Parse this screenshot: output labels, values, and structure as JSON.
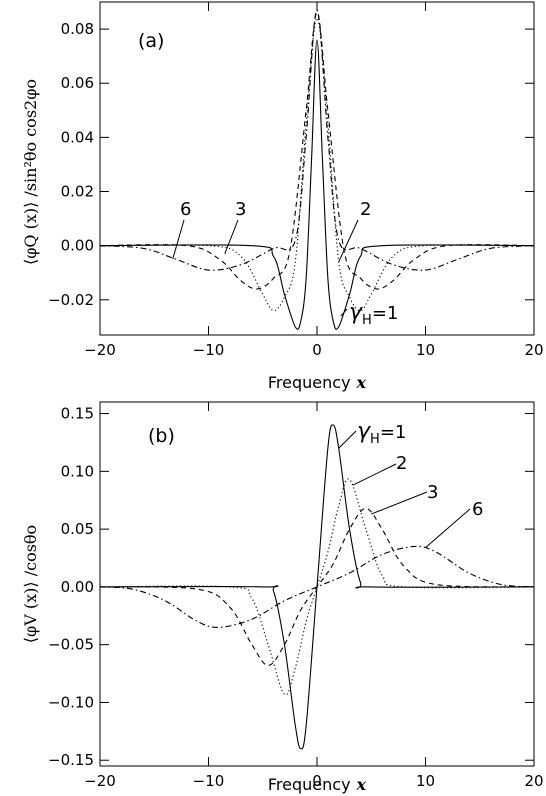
{
  "chart_data": [
    {
      "type": "line",
      "panel_label": "(a)",
      "xlabel_text": "Frequency",
      "xlabel_var": "x",
      "ylabel_text": "⟨φQ (x)⟩ /sin²θo cos2φo",
      "xlim": [
        -20,
        20
      ],
      "ylim": [
        -0.033,
        0.09
      ],
      "x_ticks": [
        -20,
        -10,
        0,
        10,
        20
      ],
      "x_tick_labels": [
        "−20",
        "−10",
        "0",
        "10",
        "20"
      ],
      "y_ticks": [
        -0.02,
        0.0,
        0.02,
        0.04,
        0.06,
        0.08
      ],
      "y_tick_labels": [
        "−0.02",
        "0.00",
        "0.02",
        "0.04",
        "0.06",
        "0.08"
      ],
      "grid": false,
      "series": [
        {
          "label": "1",
          "style": "solid",
          "x": [
            -20,
            -6,
            -4,
            -3,
            -2,
            -1.5,
            -1,
            -0.5,
            0,
            0.5,
            1,
            1.5,
            2,
            3,
            4,
            6,
            20
          ],
          "y": [
            0,
            0,
            -0.004,
            -0.018,
            -0.03,
            -0.028,
            -0.012,
            0.032,
            0.076,
            0.032,
            -0.012,
            -0.028,
            -0.03,
            -0.018,
            -0.004,
            0,
            0
          ]
        },
        {
          "label": "2",
          "style": "dotted",
          "x": [
            -20,
            -10,
            -7,
            -5,
            -4,
            -3,
            -2,
            -1,
            0,
            1,
            2,
            3,
            4,
            5,
            7,
            10,
            20
          ],
          "y": [
            0,
            0,
            -0.004,
            -0.018,
            -0.024,
            -0.019,
            -0.006,
            0.045,
            0.084,
            0.045,
            -0.006,
            -0.019,
            -0.024,
            -0.018,
            -0.004,
            0,
            0
          ]
        },
        {
          "label": "3",
          "style": "dashed",
          "x": [
            -20,
            -12,
            -9,
            -7,
            -5.5,
            -4,
            -2.5,
            -1,
            0,
            1,
            2.5,
            4,
            5.5,
            7,
            9,
            12,
            20
          ],
          "y": [
            0,
            0,
            -0.005,
            -0.013,
            -0.016,
            -0.012,
            -0.002,
            0.05,
            0.086,
            0.05,
            -0.002,
            -0.012,
            -0.016,
            -0.013,
            -0.005,
            0,
            0
          ]
        },
        {
          "label": "6",
          "style": "dashdot",
          "x": [
            -20,
            -16,
            -13,
            -10,
            -7,
            -4,
            -2,
            -1,
            0,
            1,
            2,
            4,
            7,
            10,
            13,
            16,
            20
          ],
          "y": [
            0,
            -0.001,
            -0.005,
            -0.009,
            -0.007,
            -0.001,
            0.002,
            0.04,
            0.087,
            0.04,
            0.002,
            -0.001,
            -0.007,
            -0.009,
            -0.005,
            -0.001,
            0
          ]
        }
      ],
      "annotations": [
        "6",
        "3",
        "2",
        "1"
      ],
      "gamma_symbol": "γ",
      "gamma_sub": "H",
      "gamma_eq": "=1"
    },
    {
      "type": "line",
      "panel_label": "(b)",
      "xlabel_text": "Frequency",
      "xlabel_var": "x",
      "ylabel_text": "⟨φV (x)⟩ /cosθo",
      "xlim": [
        -20,
        20
      ],
      "ylim": [
        -0.155,
        0.16
      ],
      "x_ticks": [
        -20,
        -10,
        0,
        10,
        20
      ],
      "x_tick_labels": [
        "−20",
        "−10",
        "0",
        "10",
        "20"
      ],
      "y_ticks": [
        -0.15,
        -0.1,
        -0.05,
        0.0,
        0.05,
        0.1,
        0.15
      ],
      "y_tick_labels": [
        "−0.15",
        "−0.10",
        "−0.05",
        "0.00",
        "0.05",
        "0.10",
        "0.15"
      ],
      "grid": false,
      "series": [
        {
          "label": "1",
          "style": "solid",
          "x": [
            -20,
            -5,
            -4,
            -3,
            -2,
            -1.5,
            -1,
            0,
            1,
            1.5,
            2,
            3,
            4,
            5,
            20
          ],
          "y": [
            0,
            0,
            -0.004,
            -0.05,
            -0.12,
            -0.14,
            -0.12,
            0,
            0.12,
            0.14,
            0.12,
            0.05,
            0.004,
            0,
            0
          ]
        },
        {
          "label": "2",
          "style": "dotted",
          "x": [
            -20,
            -8,
            -6,
            -4.5,
            -3,
            -2,
            -1,
            0,
            1,
            2,
            3,
            4.5,
            6,
            8,
            20
          ],
          "y": [
            0,
            0,
            -0.01,
            -0.05,
            -0.093,
            -0.07,
            -0.03,
            0,
            0.03,
            0.07,
            0.093,
            0.05,
            0.01,
            0,
            0
          ]
        },
        {
          "label": "3",
          "style": "dashed",
          "x": [
            -20,
            -11,
            -8,
            -6,
            -4.5,
            -3,
            -1.5,
            0,
            1.5,
            3,
            4.5,
            6,
            8,
            11,
            20
          ],
          "y": [
            0,
            -0.002,
            -0.018,
            -0.05,
            -0.068,
            -0.05,
            -0.02,
            0,
            0.02,
            0.05,
            0.068,
            0.05,
            0.018,
            0.002,
            0
          ]
        },
        {
          "label": "6",
          "style": "dashdot",
          "x": [
            -20,
            -17,
            -14,
            -11,
            -9,
            -6,
            -3,
            0,
            3,
            6,
            9,
            11,
            14,
            17,
            20
          ],
          "y": [
            0,
            -0.002,
            -0.012,
            -0.03,
            -0.035,
            -0.028,
            -0.012,
            0,
            0.012,
            0.028,
            0.035,
            0.03,
            0.012,
            0.002,
            0
          ]
        }
      ],
      "annotations": [
        "1",
        "2",
        "3",
        "6"
      ],
      "gamma_symbol": "γ",
      "gamma_sub": "H",
      "gamma_eq": "=1"
    }
  ]
}
